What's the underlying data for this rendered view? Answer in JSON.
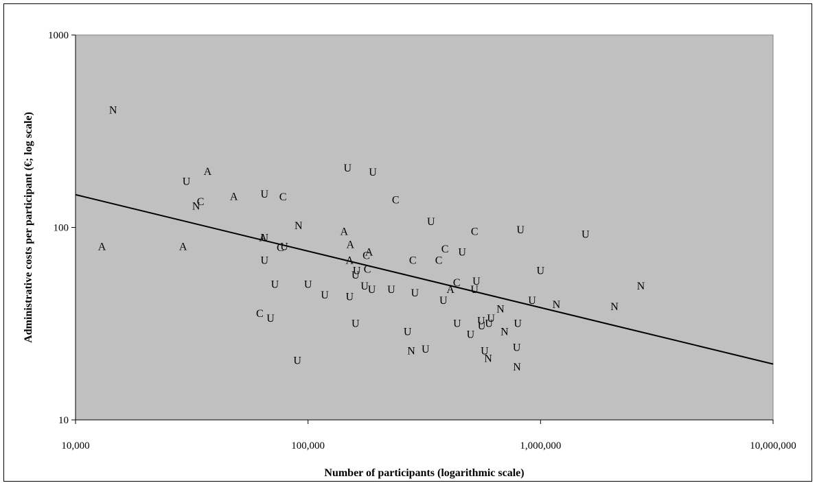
{
  "chart_data": {
    "type": "scatter",
    "title": "",
    "xlabel": "Number of participants (logarithmic scale)",
    "ylabel": "Administrative costs per participant (€; log scale)",
    "xscale": "log",
    "yscale": "log",
    "xlim": [
      10000,
      10000000
    ],
    "ylim": [
      10,
      1000
    ],
    "x_ticks": [
      10000,
      100000,
      1000000,
      10000000
    ],
    "x_tick_labels": [
      "10,000",
      "100,000",
      "1,000,000",
      "10,000,000"
    ],
    "y_ticks": [
      10,
      100,
      1000
    ],
    "y_tick_labels": [
      "10",
      "100",
      "1000"
    ],
    "plot_background": "#c0c0c0",
    "grid": false,
    "legend": "none",
    "points": [
      {
        "x": 14500,
        "y": 410,
        "label": "N"
      },
      {
        "x": 13000,
        "y": 80,
        "label": "A"
      },
      {
        "x": 29000,
        "y": 80,
        "label": "A"
      },
      {
        "x": 30000,
        "y": 175,
        "label": "U"
      },
      {
        "x": 37000,
        "y": 197,
        "label": "A"
      },
      {
        "x": 33000,
        "y": 130,
        "label": "N"
      },
      {
        "x": 34500,
        "y": 137,
        "label": "C"
      },
      {
        "x": 48000,
        "y": 146,
        "label": "A"
      },
      {
        "x": 65000,
        "y": 150,
        "label": "U"
      },
      {
        "x": 78000,
        "y": 145,
        "label": "C"
      },
      {
        "x": 64000,
        "y": 89,
        "label": "A"
      },
      {
        "x": 65000,
        "y": 89,
        "label": "U"
      },
      {
        "x": 76000,
        "y": 79,
        "label": "C"
      },
      {
        "x": 79000,
        "y": 80,
        "label": "U"
      },
      {
        "x": 65000,
        "y": 68,
        "label": "U"
      },
      {
        "x": 72000,
        "y": 51,
        "label": "U"
      },
      {
        "x": 62000,
        "y": 36,
        "label": "C"
      },
      {
        "x": 69000,
        "y": 34,
        "label": "U"
      },
      {
        "x": 91000,
        "y": 103,
        "label": "N"
      },
      {
        "x": 90000,
        "y": 20.5,
        "label": "U"
      },
      {
        "x": 100000,
        "y": 51,
        "label": "U"
      },
      {
        "x": 118000,
        "y": 45,
        "label": "U"
      },
      {
        "x": 143000,
        "y": 96,
        "label": "A"
      },
      {
        "x": 152000,
        "y": 82,
        "label": "A"
      },
      {
        "x": 148000,
        "y": 205,
        "label": "U"
      },
      {
        "x": 151000,
        "y": 68,
        "label": "A"
      },
      {
        "x": 160000,
        "y": 57,
        "label": "U"
      },
      {
        "x": 162000,
        "y": 60,
        "label": "U"
      },
      {
        "x": 151000,
        "y": 44,
        "label": "U"
      },
      {
        "x": 160000,
        "y": 32,
        "label": "U"
      },
      {
        "x": 175000,
        "y": 50,
        "label": "U"
      },
      {
        "x": 178000,
        "y": 72,
        "label": "C"
      },
      {
        "x": 183000,
        "y": 75,
        "label": "A"
      },
      {
        "x": 180000,
        "y": 61,
        "label": "C"
      },
      {
        "x": 188000,
        "y": 48,
        "label": "U"
      },
      {
        "x": 190000,
        "y": 195,
        "label": "U"
      },
      {
        "x": 228000,
        "y": 48,
        "label": "U"
      },
      {
        "x": 238000,
        "y": 140,
        "label": "C"
      },
      {
        "x": 268000,
        "y": 29,
        "label": "U"
      },
      {
        "x": 278000,
        "y": 23,
        "label": "N"
      },
      {
        "x": 282000,
        "y": 68,
        "label": "C"
      },
      {
        "x": 288000,
        "y": 46,
        "label": "U"
      },
      {
        "x": 320000,
        "y": 23.5,
        "label": "U"
      },
      {
        "x": 338000,
        "y": 108,
        "label": "U"
      },
      {
        "x": 365000,
        "y": 68,
        "label": "C"
      },
      {
        "x": 388000,
        "y": 78,
        "label": "C"
      },
      {
        "x": 382000,
        "y": 42,
        "label": "U"
      },
      {
        "x": 410000,
        "y": 48,
        "label": "A"
      },
      {
        "x": 436000,
        "y": 52,
        "label": "C"
      },
      {
        "x": 438000,
        "y": 32,
        "label": "U"
      },
      {
        "x": 460000,
        "y": 75,
        "label": "U"
      },
      {
        "x": 500000,
        "y": 28,
        "label": "U"
      },
      {
        "x": 520000,
        "y": 96,
        "label": "C"
      },
      {
        "x": 520000,
        "y": 48,
        "label": "U"
      },
      {
        "x": 530000,
        "y": 53,
        "label": "U"
      },
      {
        "x": 555000,
        "y": 33,
        "label": "U"
      },
      {
        "x": 558000,
        "y": 31,
        "label": "U"
      },
      {
        "x": 575000,
        "y": 23,
        "label": "U"
      },
      {
        "x": 595000,
        "y": 21,
        "label": "N"
      },
      {
        "x": 600000,
        "y": 32,
        "label": "U"
      },
      {
        "x": 612000,
        "y": 34,
        "label": "U"
      },
      {
        "x": 672000,
        "y": 38,
        "label": "N"
      },
      {
        "x": 700000,
        "y": 29,
        "label": "N"
      },
      {
        "x": 790000,
        "y": 24,
        "label": "U"
      },
      {
        "x": 792000,
        "y": 19,
        "label": "N"
      },
      {
        "x": 798000,
        "y": 32,
        "label": "U"
      },
      {
        "x": 820000,
        "y": 98,
        "label": "U"
      },
      {
        "x": 1000000,
        "y": 60,
        "label": "U"
      },
      {
        "x": 920000,
        "y": 42,
        "label": "U"
      },
      {
        "x": 1170000,
        "y": 40,
        "label": "N"
      },
      {
        "x": 1560000,
        "y": 93,
        "label": "U"
      },
      {
        "x": 2080000,
        "y": 39,
        "label": "N"
      },
      {
        "x": 2700000,
        "y": 50,
        "label": "N"
      }
    ],
    "trendline": {
      "x": [
        10000,
        10000000
      ],
      "y": [
        148,
        19.5
      ]
    }
  }
}
